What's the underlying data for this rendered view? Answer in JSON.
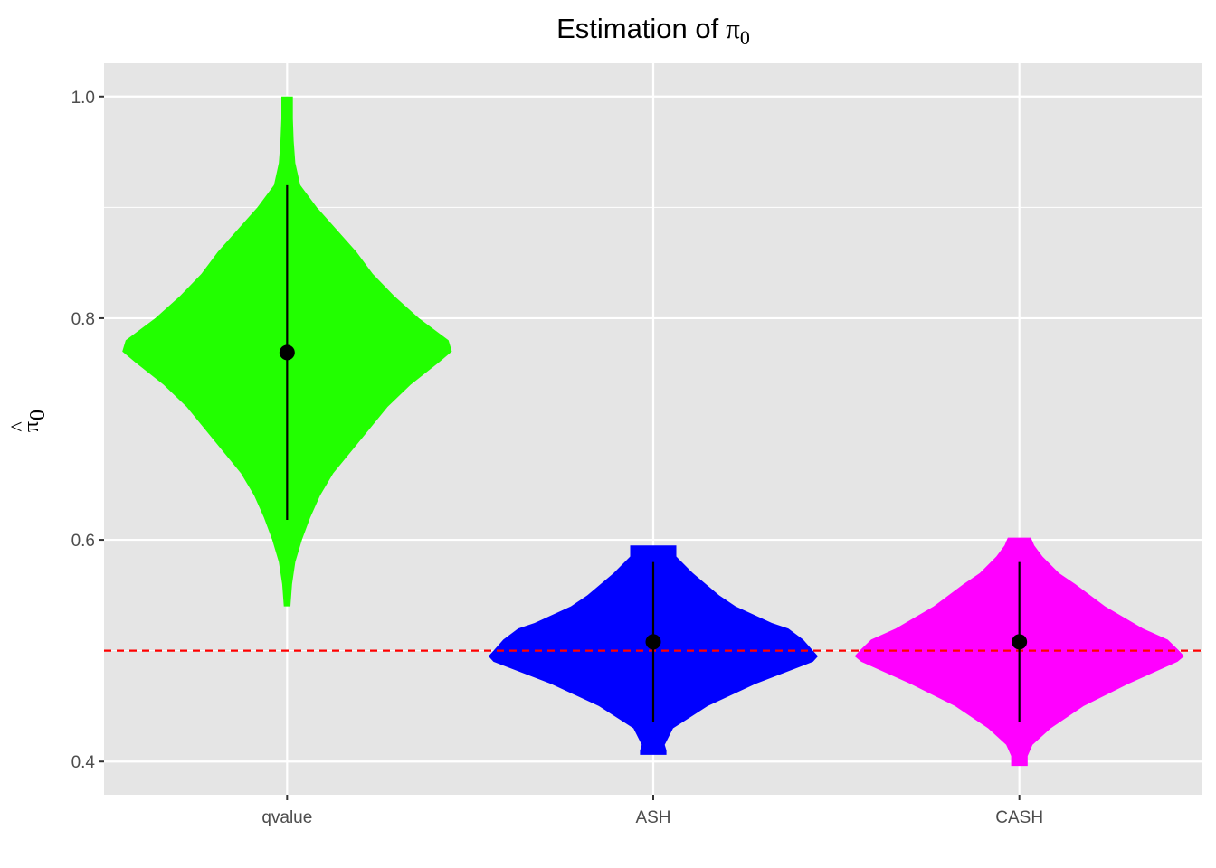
{
  "chart_data": {
    "type": "violin",
    "title": "Estimation of",
    "title_symbol": "π",
    "title_subscript": "0",
    "ylabel_symbol": "π",
    "ylabel_hat": "^",
    "ylabel_subscript": "0",
    "xlabel": "",
    "categories": [
      "qvalue",
      "ASH",
      "CASH"
    ],
    "ylim": [
      0.37,
      1.03
    ],
    "yticks": [
      0.4,
      0.6,
      0.8,
      1.0
    ],
    "ytick_labels": [
      "0.4",
      "0.6",
      "0.8",
      "1.0"
    ],
    "reference_line": {
      "y": 0.5,
      "color": "#ff0000",
      "style": "dashed"
    },
    "grid": true,
    "legend": "none",
    "series": [
      {
        "category": "qvalue",
        "color": "#22ff00",
        "median": 0.769,
        "range": [
          0.618,
          0.92
        ],
        "min": 0.54,
        "max": 1.0,
        "density": [
          [
            0.54,
            0.02
          ],
          [
            0.56,
            0.03
          ],
          [
            0.58,
            0.05
          ],
          [
            0.6,
            0.09
          ],
          [
            0.62,
            0.14
          ],
          [
            0.64,
            0.2
          ],
          [
            0.66,
            0.28
          ],
          [
            0.68,
            0.39
          ],
          [
            0.7,
            0.5
          ],
          [
            0.72,
            0.61
          ],
          [
            0.74,
            0.75
          ],
          [
            0.76,
            0.92
          ],
          [
            0.77,
            1.0
          ],
          [
            0.78,
            0.98
          ],
          [
            0.8,
            0.8
          ],
          [
            0.82,
            0.65
          ],
          [
            0.84,
            0.52
          ],
          [
            0.86,
            0.42
          ],
          [
            0.88,
            0.3
          ],
          [
            0.9,
            0.18
          ],
          [
            0.92,
            0.08
          ],
          [
            0.94,
            0.05
          ],
          [
            0.96,
            0.04
          ],
          [
            0.98,
            0.035
          ],
          [
            1.0,
            0.035
          ]
        ]
      },
      {
        "category": "ASH",
        "color": "#0000ff",
        "median": 0.508,
        "range": [
          0.436,
          0.58
        ],
        "min": 0.406,
        "max": 0.595,
        "density": [
          [
            0.406,
            0.08
          ],
          [
            0.41,
            0.08
          ],
          [
            0.415,
            0.07
          ],
          [
            0.43,
            0.12
          ],
          [
            0.45,
            0.33
          ],
          [
            0.47,
            0.62
          ],
          [
            0.49,
            0.97
          ],
          [
            0.495,
            1.0
          ],
          [
            0.5,
            0.97
          ],
          [
            0.51,
            0.91
          ],
          [
            0.52,
            0.82
          ],
          [
            0.525,
            0.72
          ],
          [
            0.54,
            0.5
          ],
          [
            0.55,
            0.4
          ],
          [
            0.57,
            0.24
          ],
          [
            0.585,
            0.14
          ],
          [
            0.595,
            0.14
          ]
        ]
      },
      {
        "category": "CASH",
        "color": "#ff00ff",
        "median": 0.508,
        "range": [
          0.436,
          0.58
        ],
        "min": 0.396,
        "max": 0.602,
        "density": [
          [
            0.396,
            0.05
          ],
          [
            0.405,
            0.05
          ],
          [
            0.415,
            0.08
          ],
          [
            0.43,
            0.19
          ],
          [
            0.45,
            0.39
          ],
          [
            0.47,
            0.66
          ],
          [
            0.49,
            0.96
          ],
          [
            0.495,
            1.0
          ],
          [
            0.5,
            0.97
          ],
          [
            0.51,
            0.9
          ],
          [
            0.52,
            0.75
          ],
          [
            0.54,
            0.52
          ],
          [
            0.56,
            0.34
          ],
          [
            0.57,
            0.24
          ],
          [
            0.585,
            0.14
          ],
          [
            0.595,
            0.09
          ],
          [
            0.602,
            0.07
          ]
        ]
      }
    ]
  }
}
